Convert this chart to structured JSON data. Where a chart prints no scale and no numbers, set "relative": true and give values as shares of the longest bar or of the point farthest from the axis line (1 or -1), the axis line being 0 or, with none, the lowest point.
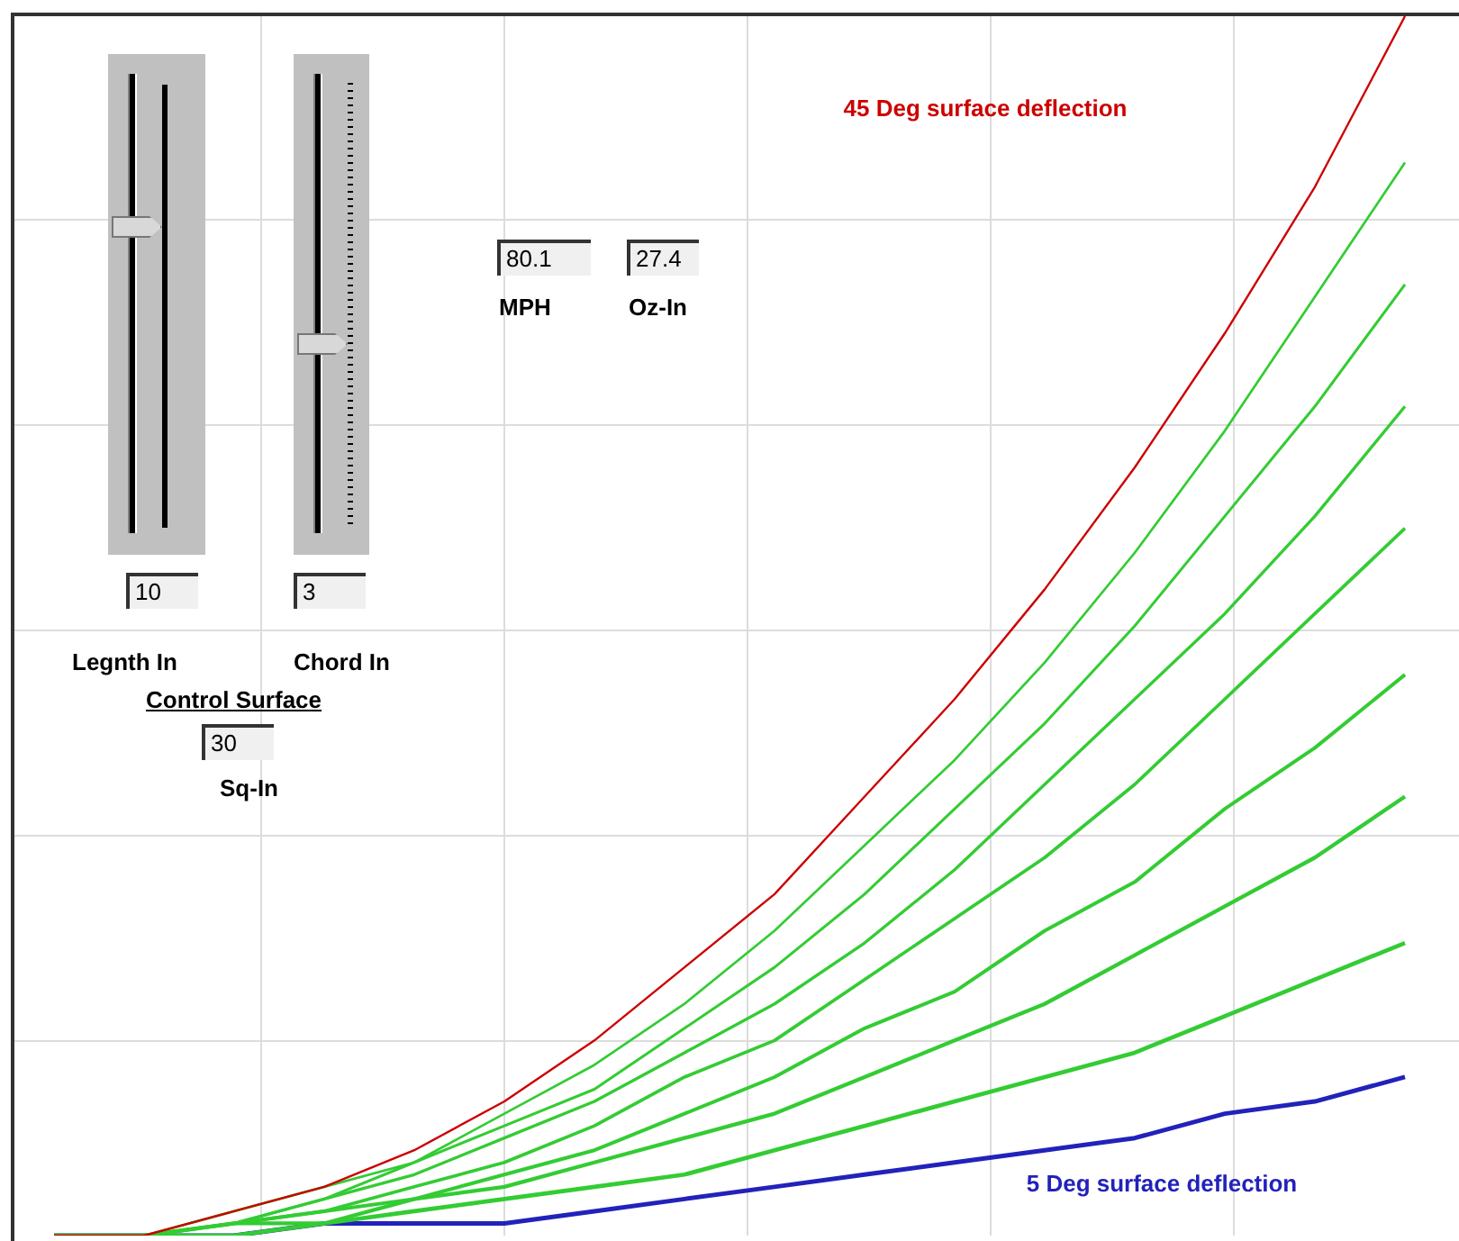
{
  "chart_data": {
    "type": "line",
    "relative": true,
    "grid": true,
    "marker": "none",
    "line_style": "solid",
    "categories": [
      null,
      null,
      null,
      null,
      null,
      null,
      null,
      null,
      null,
      null,
      null,
      null,
      null,
      null,
      null,
      null
    ],
    "series": [
      {
        "name": "45 Deg surface deflection",
        "color": "#cc0000",
        "values": [
          0,
          0,
          0.02,
          0.04,
          0.07,
          0.11,
          0.16,
          0.22,
          0.28,
          0.36,
          0.44,
          0.53,
          0.63,
          0.74,
          0.86,
          1
        ]
      },
      {
        "color": "#33cc33",
        "values": [
          0,
          0,
          0.02,
          0.04,
          0.06,
          0.1,
          0.14,
          0.19,
          0.25,
          0.32,
          0.39,
          0.47,
          0.56,
          0.66,
          0.77,
          0.88
        ]
      },
      {
        "color": "#33cc33",
        "values": [
          0,
          0,
          0.01,
          0.03,
          0.06,
          0.09,
          0.12,
          0.17,
          0.22,
          0.28,
          0.35,
          0.42,
          0.5,
          0.59,
          0.68,
          0.78
        ]
      },
      {
        "color": "#33cc33",
        "values": [
          0,
          0,
          0.01,
          0.03,
          0.05,
          0.08,
          0.11,
          0.15,
          0.19,
          0.24,
          0.3,
          0.37,
          0.44,
          0.51,
          0.59,
          0.68
        ]
      },
      {
        "color": "#33cc33",
        "values": [
          0,
          0,
          0.01,
          0.02,
          0.04,
          0.06,
          0.09,
          0.13,
          0.16,
          0.21,
          0.26,
          0.31,
          0.37,
          0.44,
          0.51,
          0.58
        ]
      },
      {
        "color": "#33cc33",
        "values": [
          0,
          0,
          0.01,
          0.02,
          0.03,
          0.05,
          0.07,
          0.1,
          0.13,
          0.17,
          0.2,
          0.25,
          0.29,
          0.35,
          0.4,
          0.46
        ]
      },
      {
        "color": "#33cc33",
        "values": [
          0,
          0,
          0.01,
          0.01,
          0.03,
          0.04,
          0.06,
          0.08,
          0.1,
          0.13,
          0.16,
          0.19,
          0.23,
          0.27,
          0.31,
          0.36
        ]
      },
      {
        "color": "#33cc33",
        "values": [
          0,
          0,
          0,
          0.01,
          0.02,
          0.03,
          0.04,
          0.05,
          0.07,
          0.09,
          0.11,
          0.13,
          0.15,
          0.18,
          0.21,
          0.24
        ]
      },
      {
        "name": "5 Deg surface deflection",
        "color": "#2222bb",
        "values": [
          0,
          0,
          0,
          0.01,
          0.01,
          0.01,
          0.02,
          0.03,
          0.04,
          0.05,
          0.06,
          0.07,
          0.08,
          0.1,
          0.11,
          0.13
        ]
      }
    ],
    "annotations": [
      "10",
      "3",
      "Legnth In",
      "Chord In",
      "Control Surface",
      "30",
      "Sq-In",
      "80.1",
      "27.4",
      "MPH",
      "Oz-In"
    ]
  }
}
